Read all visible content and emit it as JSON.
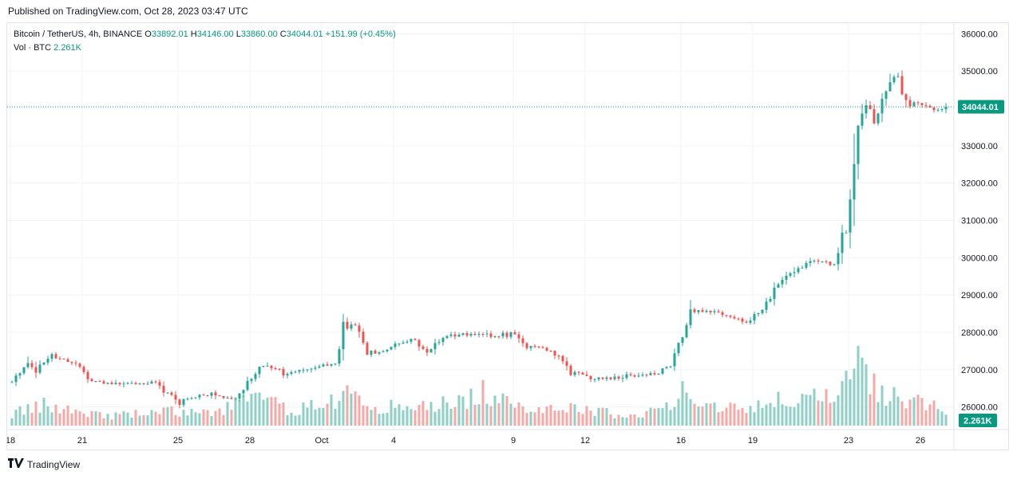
{
  "header": {
    "published_text": "Published on TradingView.com, Oct 28, 2023 03:47 UTC"
  },
  "legend": {
    "symbol": "Bitcoin / TetherUS, 4h, BINANCE",
    "o_label": "O",
    "o_value": "33892.01",
    "h_label": "H",
    "h_value": "34146.00",
    "l_label": "L",
    "l_value": "33860.00",
    "c_label": "C",
    "c_value": "34044.01",
    "change": "+151.99 (+0.45%)",
    "vol_label": "Vol · BTC",
    "vol_value": "2.261K"
  },
  "footer": {
    "logo_text": "TradingView"
  },
  "colors": {
    "up": "#26a69a",
    "down": "#ef5350",
    "vol_up": "#8fcfc6",
    "vol_down": "#f5a9a7",
    "grid": "#f0f3fa",
    "badge": "#089981"
  },
  "chart_data": {
    "type": "candlestick",
    "interval": "4h",
    "last_price": 34044.01,
    "last_price_label": "34044.01",
    "last_volume_label": "2.261K",
    "ylim": [
      25500,
      36200
    ],
    "y_ticks": [
      26000,
      27000,
      28000,
      29000,
      30000,
      31000,
      32000,
      33000,
      34000,
      35000,
      36000
    ],
    "y_tick_labels": [
      "26000.00",
      "27000.00",
      "28000.00",
      "29000.00",
      "30000.00",
      "31000.00",
      "32000.00",
      "33000.00",
      "34000.00",
      "35000.00",
      "36000.00"
    ],
    "x_ticks": [
      {
        "label": "18",
        "bar": 0
      },
      {
        "label": "21",
        "bar": 18
      },
      {
        "label": "25",
        "bar": 42
      },
      {
        "label": "28",
        "bar": 60
      },
      {
        "label": "Oct",
        "bar": 78
      },
      {
        "label": "4",
        "bar": 96
      },
      {
        "label": "9",
        "bar": 126
      },
      {
        "label": "12",
        "bar": 144
      },
      {
        "label": "16",
        "bar": 168
      },
      {
        "label": "19",
        "bar": 186
      },
      {
        "label": "23",
        "bar": 210
      },
      {
        "label": "26",
        "bar": 228
      }
    ],
    "grid": true,
    "anchors": [
      [
        0,
        26650
      ],
      [
        4,
        27250
      ],
      [
        6,
        26950
      ],
      [
        10,
        27400
      ],
      [
        16,
        27150
      ],
      [
        20,
        26700
      ],
      [
        24,
        26630
      ],
      [
        30,
        26620
      ],
      [
        36,
        26650
      ],
      [
        42,
        26100
      ],
      [
        46,
        26280
      ],
      [
        50,
        26350
      ],
      [
        56,
        26200
      ],
      [
        60,
        26820
      ],
      [
        64,
        27150
      ],
      [
        68,
        26900
      ],
      [
        72,
        26980
      ],
      [
        76,
        27100
      ],
      [
        81,
        27150
      ],
      [
        83,
        28050
      ],
      [
        86,
        28200
      ],
      [
        89,
        27500
      ],
      [
        92,
        27450
      ],
      [
        96,
        27650
      ],
      [
        100,
        27800
      ],
      [
        104,
        27500
      ],
      [
        108,
        27850
      ],
      [
        112,
        27950
      ],
      [
        120,
        27900
      ],
      [
        126,
        27950
      ],
      [
        128,
        27600
      ],
      [
        132,
        27650
      ],
      [
        136,
        27400
      ],
      [
        140,
        26950
      ],
      [
        144,
        26800
      ],
      [
        148,
        26750
      ],
      [
        152,
        26800
      ],
      [
        156,
        26850
      ],
      [
        162,
        26900
      ],
      [
        165,
        27100
      ],
      [
        168,
        27900
      ],
      [
        170,
        28500
      ],
      [
        174,
        28600
      ],
      [
        180,
        28450
      ],
      [
        184,
        28250
      ],
      [
        188,
        28600
      ],
      [
        190,
        28900
      ],
      [
        192,
        29400
      ],
      [
        196,
        29700
      ],
      [
        200,
        29900
      ],
      [
        204,
        29900
      ],
      [
        206,
        29800
      ],
      [
        208,
        30500
      ],
      [
        209,
        30700
      ],
      [
        210,
        31300
      ],
      [
        211,
        33000
      ],
      [
        212,
        34200
      ],
      [
        214,
        34000
      ],
      [
        216,
        33700
      ],
      [
        218,
        34200
      ],
      [
        220,
        34900
      ],
      [
        222,
        34800
      ],
      [
        224,
        34100
      ],
      [
        228,
        34100
      ],
      [
        232,
        33950
      ],
      [
        234,
        34044
      ]
    ],
    "volume_anchors": [
      [
        0,
        0.15
      ],
      [
        8,
        0.25
      ],
      [
        16,
        0.2
      ],
      [
        24,
        0.12
      ],
      [
        40,
        0.18
      ],
      [
        50,
        0.15
      ],
      [
        57,
        0.3
      ],
      [
        62,
        0.35
      ],
      [
        70,
        0.18
      ],
      [
        80,
        0.32
      ],
      [
        84,
        0.38
      ],
      [
        90,
        0.25
      ],
      [
        100,
        0.22
      ],
      [
        112,
        0.3
      ],
      [
        118,
        0.42
      ],
      [
        126,
        0.22
      ],
      [
        136,
        0.25
      ],
      [
        146,
        0.18
      ],
      [
        156,
        0.12
      ],
      [
        164,
        0.22
      ],
      [
        168,
        0.55
      ],
      [
        170,
        0.35
      ],
      [
        180,
        0.22
      ],
      [
        190,
        0.3
      ],
      [
        200,
        0.35
      ],
      [
        206,
        0.32
      ],
      [
        209,
        0.5
      ],
      [
        211,
        0.65
      ],
      [
        212,
        0.95
      ],
      [
        214,
        0.6
      ],
      [
        218,
        0.4
      ],
      [
        224,
        0.35
      ],
      [
        230,
        0.25
      ],
      [
        234,
        0.15
      ]
    ]
  }
}
